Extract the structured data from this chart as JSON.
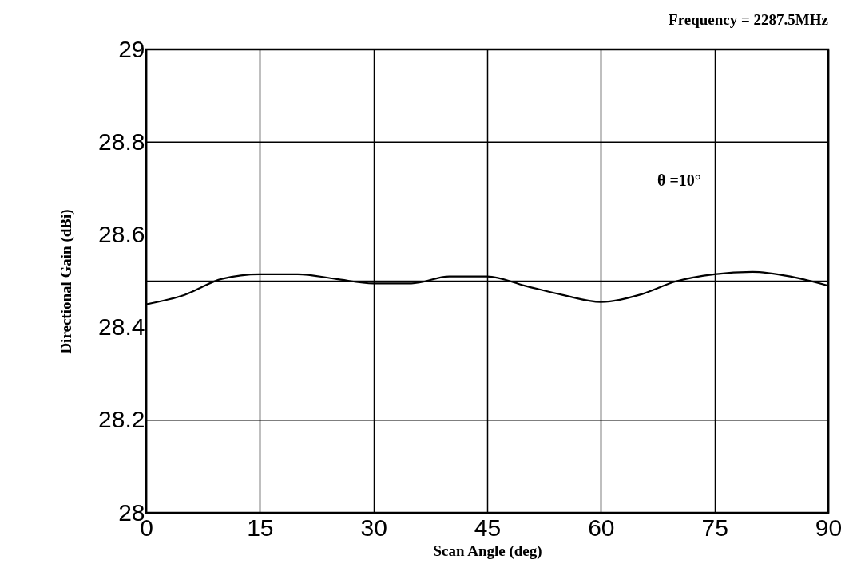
{
  "chart_data": {
    "type": "line",
    "title": "Frequency = 2287.5MHz",
    "xlabel": "Scan Angle (deg)",
    "ylabel": "Directional Gain (dBi)",
    "annotations": [
      "θ =10°"
    ],
    "x": [
      0,
      5,
      10,
      15,
      20,
      25,
      30,
      35,
      40,
      45,
      50,
      55,
      60,
      65,
      70,
      75,
      80,
      85,
      90
    ],
    "series": [
      {
        "color": "#000000",
        "values": [
          28.45,
          28.47,
          28.505,
          28.515,
          28.515,
          28.505,
          28.495,
          28.495,
          28.51,
          28.51,
          28.49,
          28.47,
          28.455,
          28.47,
          28.5,
          28.515,
          28.52,
          28.51,
          28.49
        ]
      }
    ],
    "xlim": [
      0,
      90
    ],
    "xticks": [
      0,
      15,
      30,
      45,
      60,
      75,
      90
    ],
    "ylim": [
      28,
      29
    ],
    "yticks": [
      28,
      28.2,
      28.4,
      28.6,
      28.8,
      29
    ],
    "grid": "x",
    "ref_lines": [
      {
        "axis": "y",
        "value": 28.2,
        "color": "#000000"
      },
      {
        "axis": "y",
        "value": 28.5,
        "color": "#000000"
      },
      {
        "axis": "y",
        "value": 28.8,
        "color": "#000000"
      }
    ],
    "legend": false,
    "marker": "none",
    "line_style": "solid"
  }
}
